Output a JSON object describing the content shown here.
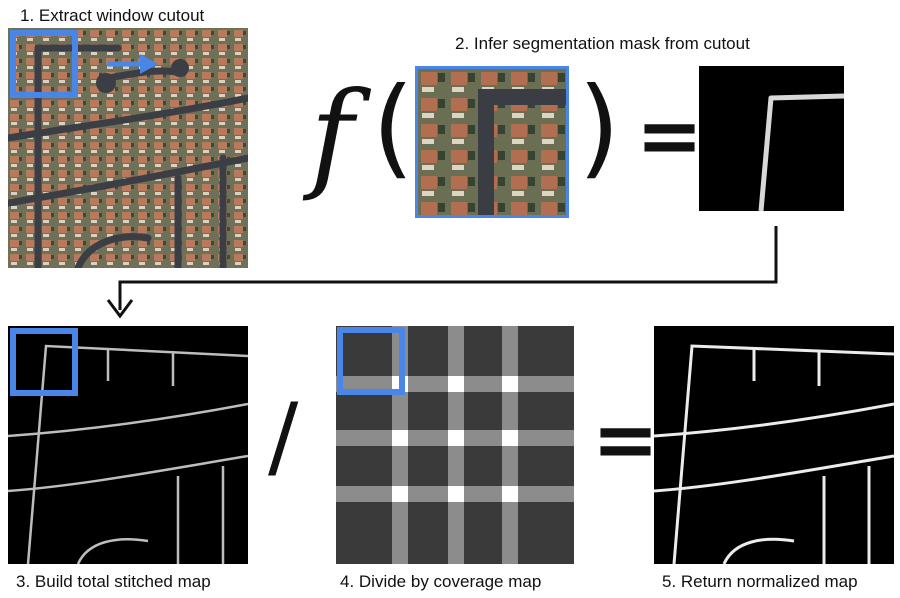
{
  "steps": {
    "step1": "1. Extract window cutout",
    "step2": "2. Infer segmentation mask from cutout",
    "step3": "3. Build total stitched map",
    "step4": "4. Divide by coverage map",
    "step5": "5. Return normalized map"
  },
  "formula": {
    "function": "f",
    "open_paren": "(",
    "close_paren": ")",
    "equals_1": "=",
    "divide": "/",
    "equals_2": "="
  },
  "colors": {
    "highlight": "#4a86e8",
    "road_line": "#e6e6e6",
    "background": "#000000"
  },
  "coverage_map": {
    "grid": 4,
    "levels": [
      "#3a3a3a",
      "#8c8c8c",
      "#ffffff"
    ]
  }
}
